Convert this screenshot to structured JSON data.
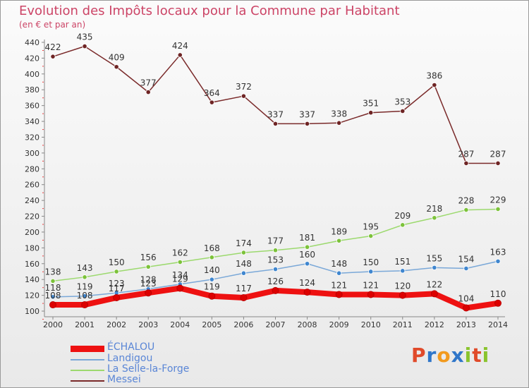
{
  "title": "Evolution des Impôts locaux pour la Commune par Habitant",
  "subtitle": "(en € et par an)",
  "logo": {
    "letters": [
      "P",
      "r",
      "o",
      "x",
      "i",
      "t",
      "i"
    ],
    "colors": [
      "#e04a2a",
      "#2f76c9",
      "#f29a1e",
      "#2f76c9",
      "#8ac42e",
      "#e04a2a",
      "#8ac42e"
    ]
  },
  "chart_data": {
    "type": "line",
    "title": "Evolution des Impôts locaux pour la Commune par Habitant",
    "subtitle": "(en € et par an)",
    "x": [
      2000,
      2001,
      2002,
      2003,
      2004,
      2005,
      2006,
      2007,
      2008,
      2009,
      2010,
      2011,
      2012,
      2013,
      2014
    ],
    "ylim": [
      100,
      440
    ],
    "yticks": [
      100,
      120,
      140,
      160,
      180,
      200,
      220,
      240,
      260,
      280,
      300,
      320,
      340,
      360,
      380,
      400,
      420,
      440
    ],
    "grid": false,
    "legend_position": "bottom-left",
    "series": [
      {
        "name": "Messei",
        "color": "#7a2a2a",
        "marker": "#6e2424",
        "values": [
          422,
          435,
          409,
          377,
          424,
          364,
          372,
          337,
          337,
          338,
          351,
          353,
          386,
          287,
          287
        ]
      },
      {
        "name": "La Selle-la-Forge",
        "color": "#9cd96e",
        "marker": "#7cc23a",
        "values": [
          138,
          143,
          150,
          156,
          162,
          168,
          174,
          177,
          181,
          189,
          195,
          209,
          218,
          228,
          229
        ]
      },
      {
        "name": "Landigou",
        "color": "#7aa8d8",
        "marker": "#3f86cf",
        "values": [
          118,
          119,
          123,
          128,
          134,
          140,
          148,
          153,
          160,
          148,
          150,
          151,
          155,
          154,
          163
        ]
      },
      {
        "name": "ÉCHALOU",
        "color": "#ee1111",
        "marker": "#dd0000",
        "values": [
          108,
          108,
          117,
          123,
          129,
          119,
          117,
          126,
          124,
          121,
          121,
          120,
          122,
          104,
          110
        ]
      }
    ],
    "legend": [
      "ÉCHALOU",
      "Landigou",
      "La Selle-la-Forge",
      "Messei"
    ]
  }
}
